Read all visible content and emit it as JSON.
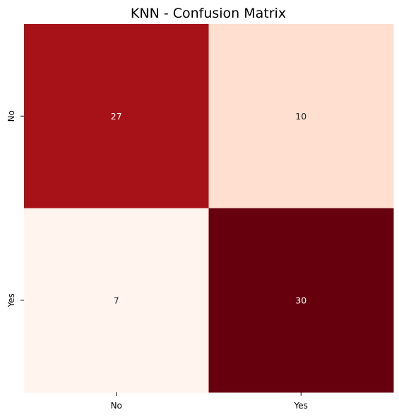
{
  "chart_data": {
    "type": "heatmap",
    "title": "KNN - Confusion Matrix",
    "xlabel": "",
    "ylabel": "",
    "x_categories": [
      "No",
      "Yes"
    ],
    "y_categories": [
      "No",
      "Yes"
    ],
    "values": [
      [
        27,
        10
      ],
      [
        7,
        30
      ]
    ],
    "colormap": "Reds",
    "colorbar": false,
    "cell_colors": [
      [
        "#a61218",
        "#ffdfd0"
      ],
      [
        "#fff4ee",
        "#67000d"
      ]
    ],
    "annotation_colors": [
      [
        "#ffffff",
        "#262626"
      ],
      [
        "#262626",
        "#ffffff"
      ]
    ]
  }
}
